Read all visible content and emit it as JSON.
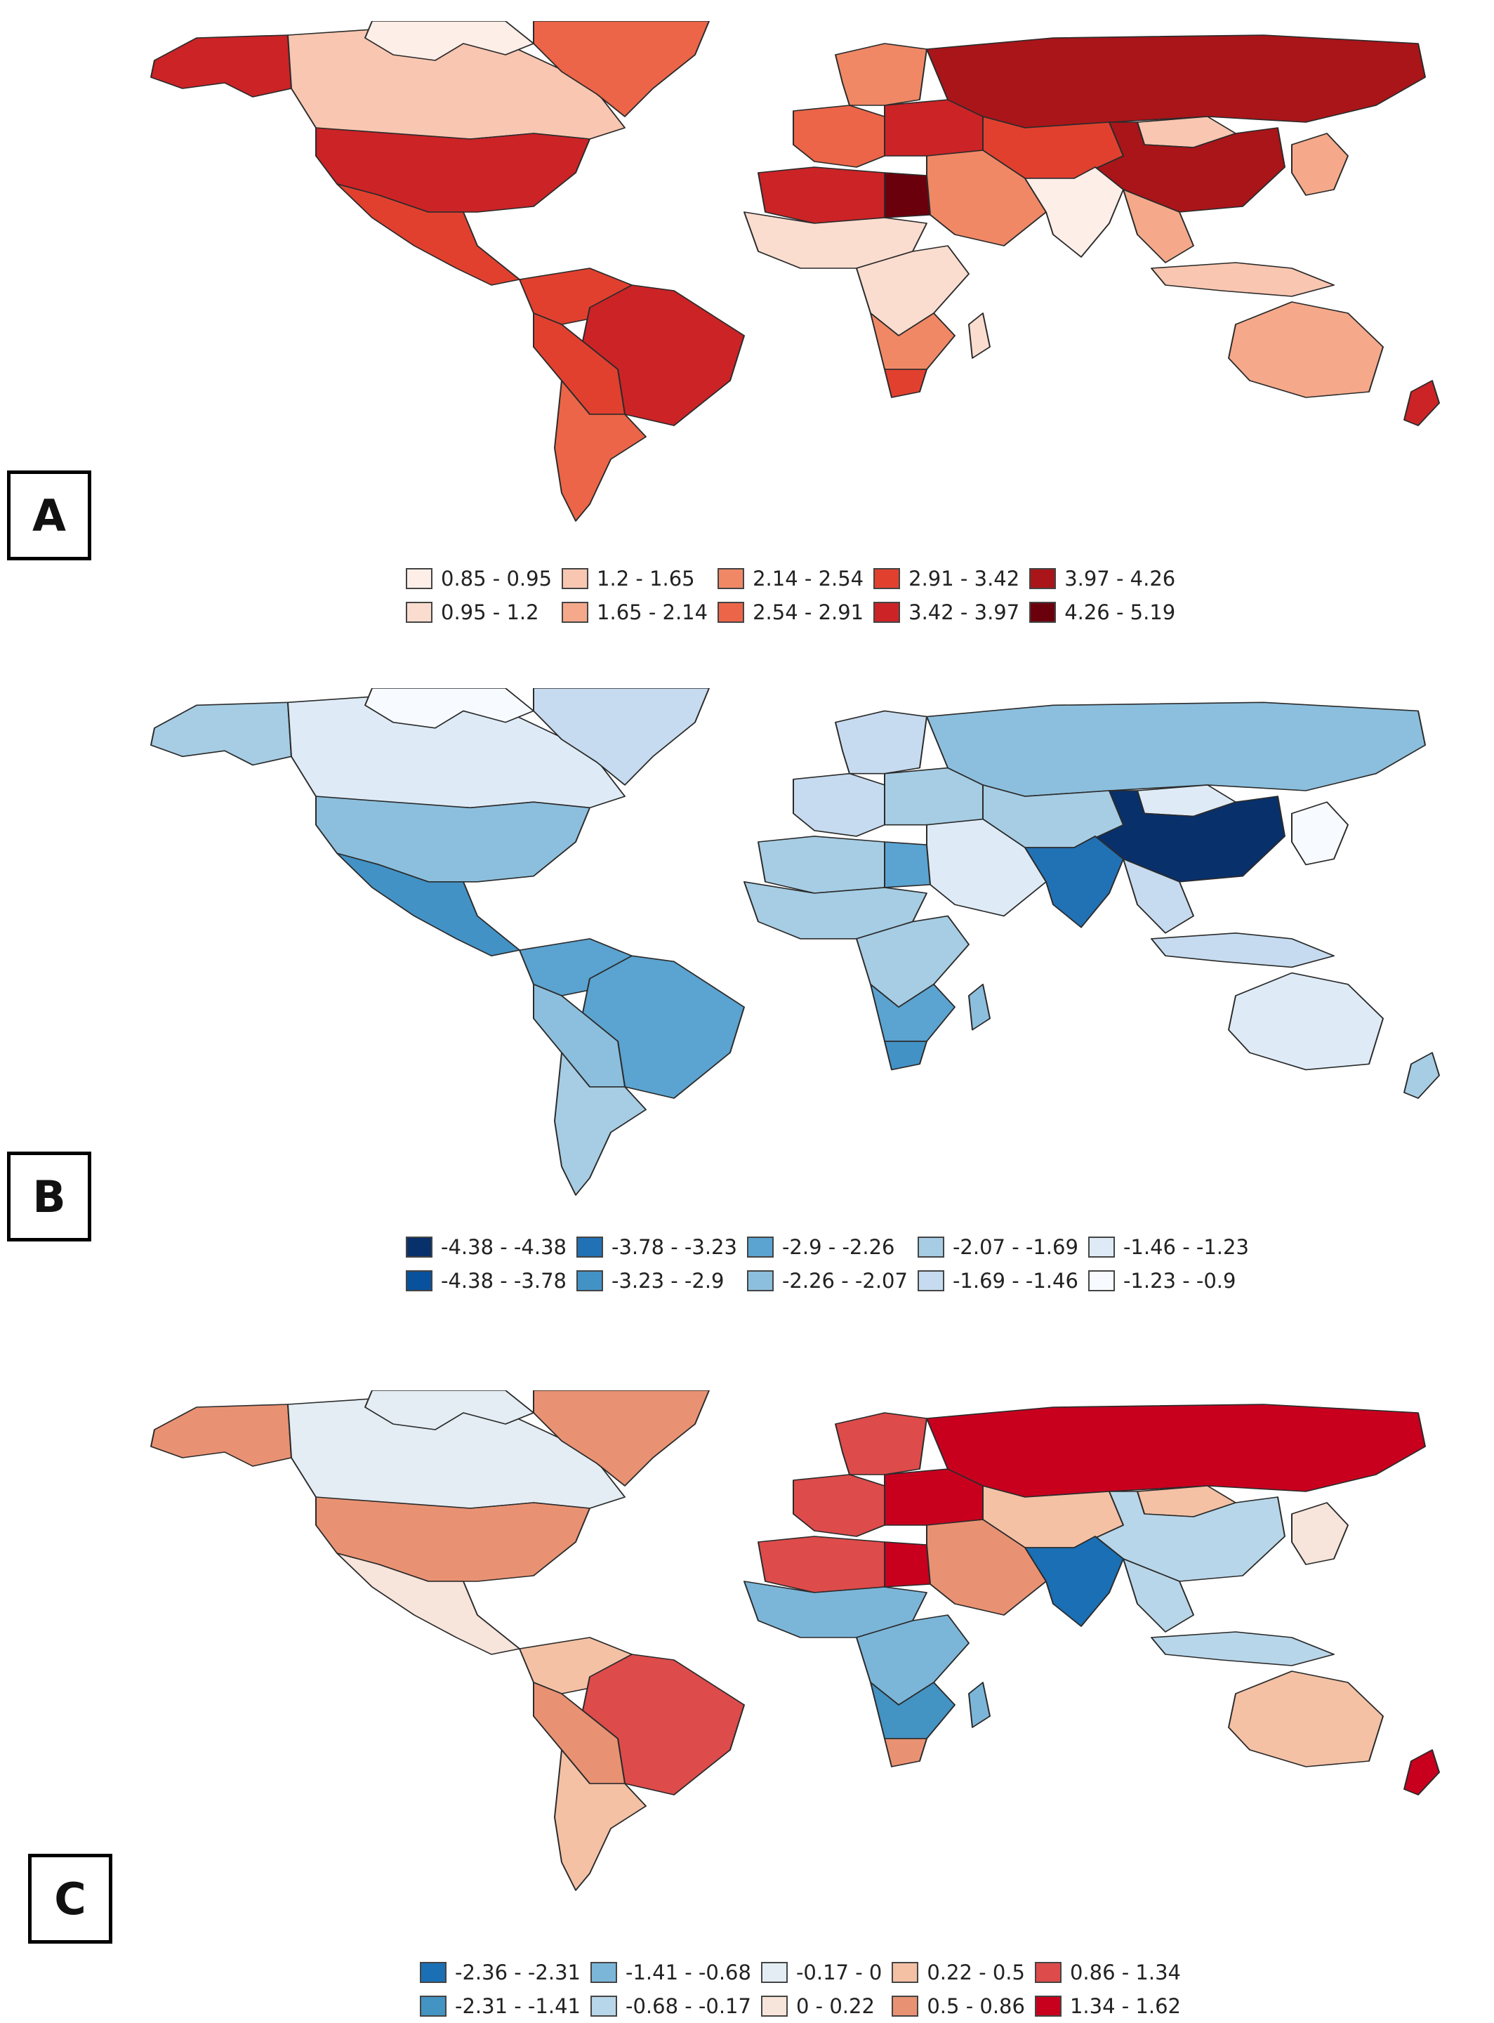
{
  "panels": [
    {
      "label": "A",
      "legend": [
        {
          "text": "0.85 - 0.95",
          "color": "#fdeee8"
        },
        {
          "text": "0.95 - 1.2",
          "color": "#fbddd0"
        },
        {
          "text": "1.2 - 1.65",
          "color": "#f9c6b1"
        },
        {
          "text": "1.65 - 2.14",
          "color": "#f5a98a"
        },
        {
          "text": "2.14 - 2.54",
          "color": "#f08866"
        },
        {
          "text": "2.54 - 2.91",
          "color": "#ec6548"
        },
        {
          "text": "2.91 - 3.42",
          "color": "#e2402f"
        },
        {
          "text": "3.42 - 3.97",
          "color": "#cc2326"
        },
        {
          "text": "3.97 - 4.26",
          "color": "#a91519"
        },
        {
          "text": "4.26 - 5.19",
          "color": "#6b000d"
        }
      ],
      "regions": [
        {
          "name": "alaska",
          "color": "#cc2326"
        },
        {
          "name": "canada",
          "color": "#f9c6b1"
        },
        {
          "name": "arctic-islands",
          "color": "#fdeee8"
        },
        {
          "name": "greenland",
          "color": "#ec6548"
        },
        {
          "name": "usa",
          "color": "#cc2326"
        },
        {
          "name": "mexico-central-america",
          "color": "#e2402f"
        },
        {
          "name": "colombia-venezuela",
          "color": "#e2402f"
        },
        {
          "name": "brazil",
          "color": "#cc2326"
        },
        {
          "name": "peru-bolivia",
          "color": "#e2402f"
        },
        {
          "name": "argentina-chile",
          "color": "#ec6548"
        },
        {
          "name": "western-europe",
          "color": "#ec6548"
        },
        {
          "name": "eastern-europe",
          "color": "#cc2326"
        },
        {
          "name": "scandinavia",
          "color": "#f08866"
        },
        {
          "name": "russia",
          "color": "#a91519"
        },
        {
          "name": "kazakhstan-central-asia",
          "color": "#e2402f"
        },
        {
          "name": "mongolia",
          "color": "#f9c6b1"
        },
        {
          "name": "china",
          "color": "#a91519"
        },
        {
          "name": "japan-korea",
          "color": "#f5a98a"
        },
        {
          "name": "north-africa",
          "color": "#cc2326"
        },
        {
          "name": "egypt",
          "color": "#6b000d"
        },
        {
          "name": "middle-east",
          "color": "#f08866"
        },
        {
          "name": "south-asia",
          "color": "#fdeee8"
        },
        {
          "name": "southeast-asia",
          "color": "#f5a98a"
        },
        {
          "name": "indonesia-pacific",
          "color": "#f9c6b1"
        },
        {
          "name": "sahel-west-africa",
          "color": "#fbddd0"
        },
        {
          "name": "central-east-africa",
          "color": "#fbddd0"
        },
        {
          "name": "southern-africa",
          "color": "#f08866"
        },
        {
          "name": "south-africa",
          "color": "#e2402f"
        },
        {
          "name": "madagascar",
          "color": "#fbddd0"
        },
        {
          "name": "australia",
          "color": "#f5a98a"
        },
        {
          "name": "new-zealand",
          "color": "#cc2326"
        }
      ]
    },
    {
      "label": "B",
      "legend": [
        {
          "text": "-4.38 - -4.38",
          "color": "#08306b"
        },
        {
          "text": "-4.38 - -3.78",
          "color": "#08519c"
        },
        {
          "text": "-3.78 - -3.23",
          "color": "#2171b5"
        },
        {
          "text": "-3.23 - -2.9",
          "color": "#4292c6"
        },
        {
          "text": "-2.9 - -2.26",
          "color": "#5ba3d0"
        },
        {
          "text": "-2.26 - -2.07",
          "color": "#8cbfdd"
        },
        {
          "text": "-2.07 - -1.69",
          "color": "#a6cde4"
        },
        {
          "text": "-1.69 - -1.46",
          "color": "#c6dbef"
        },
        {
          "text": "-1.46 - -1.23",
          "color": "#deebf7"
        },
        {
          "text": "-1.23 - -0.9",
          "color": "#f7fbff"
        }
      ],
      "regions": [
        {
          "name": "alaska",
          "color": "#a6cde4"
        },
        {
          "name": "canada",
          "color": "#deebf7"
        },
        {
          "name": "arctic-islands",
          "color": "#f7fbff"
        },
        {
          "name": "greenland",
          "color": "#c6dbef"
        },
        {
          "name": "usa",
          "color": "#8cbfdd"
        },
        {
          "name": "mexico-central-america",
          "color": "#4292c6"
        },
        {
          "name": "colombia-venezuela",
          "color": "#5ba3d0"
        },
        {
          "name": "brazil",
          "color": "#5ba3d0"
        },
        {
          "name": "peru-bolivia",
          "color": "#8cbfdd"
        },
        {
          "name": "argentina-chile",
          "color": "#a6cde4"
        },
        {
          "name": "western-europe",
          "color": "#c6dbef"
        },
        {
          "name": "eastern-europe",
          "color": "#a6cde4"
        },
        {
          "name": "scandinavia",
          "color": "#c6dbef"
        },
        {
          "name": "russia",
          "color": "#8cbfdd"
        },
        {
          "name": "kazakhstan-central-asia",
          "color": "#a6cde4"
        },
        {
          "name": "mongolia",
          "color": "#deebf7"
        },
        {
          "name": "china",
          "color": "#08306b"
        },
        {
          "name": "japan-korea",
          "color": "#f7fbff"
        },
        {
          "name": "north-africa",
          "color": "#a6cde4"
        },
        {
          "name": "egypt",
          "color": "#5ba3d0"
        },
        {
          "name": "middle-east",
          "color": "#deebf7"
        },
        {
          "name": "south-asia",
          "color": "#2171b5"
        },
        {
          "name": "southeast-asia",
          "color": "#c6dbef"
        },
        {
          "name": "indonesia-pacific",
          "color": "#c6dbef"
        },
        {
          "name": "sahel-west-africa",
          "color": "#a6cde4"
        },
        {
          "name": "central-east-africa",
          "color": "#a6cde4"
        },
        {
          "name": "southern-africa",
          "color": "#5ba3d0"
        },
        {
          "name": "south-africa",
          "color": "#4292c6"
        },
        {
          "name": "madagascar",
          "color": "#8cbfdd"
        },
        {
          "name": "australia",
          "color": "#deebf7"
        },
        {
          "name": "new-zealand",
          "color": "#a6cde4"
        }
      ]
    },
    {
      "label": "C",
      "legend": [
        {
          "text": "-2.36 - -2.31",
          "color": "#1a6fb5"
        },
        {
          "text": "-2.31 - -1.41",
          "color": "#4393c3"
        },
        {
          "text": "-1.41 - -0.68",
          "color": "#7bb6d9"
        },
        {
          "text": "-0.68 - -0.17",
          "color": "#b8d6e9"
        },
        {
          "text": "-0.17 - 0",
          "color": "#e3edf3"
        },
        {
          "text": "0 - 0.22",
          "color": "#f7e4da"
        },
        {
          "text": "0.22 - 0.5",
          "color": "#f4c1a5"
        },
        {
          "text": "0.5 - 0.86",
          "color": "#e99273"
        },
        {
          "text": "0.86 - 1.34",
          "color": "#de4b4b"
        },
        {
          "text": "1.34 - 1.62",
          "color": "#c8001e"
        }
      ],
      "regions": [
        {
          "name": "alaska",
          "color": "#e99273"
        },
        {
          "name": "canada",
          "color": "#e3edf3"
        },
        {
          "name": "arctic-islands",
          "color": "#e3edf3"
        },
        {
          "name": "greenland",
          "color": "#e99273"
        },
        {
          "name": "usa",
          "color": "#e99273"
        },
        {
          "name": "mexico-central-america",
          "color": "#f7e4da"
        },
        {
          "name": "colombia-venezuela",
          "color": "#f4c1a5"
        },
        {
          "name": "brazil",
          "color": "#de4b4b"
        },
        {
          "name": "peru-bolivia",
          "color": "#e99273"
        },
        {
          "name": "argentina-chile",
          "color": "#f4c1a5"
        },
        {
          "name": "western-europe",
          "color": "#de4b4b"
        },
        {
          "name": "eastern-europe",
          "color": "#c8001e"
        },
        {
          "name": "scandinavia",
          "color": "#de4b4b"
        },
        {
          "name": "russia",
          "color": "#c8001e"
        },
        {
          "name": "kazakhstan-central-asia",
          "color": "#f4c1a5"
        },
        {
          "name": "mongolia",
          "color": "#f4c1a5"
        },
        {
          "name": "china",
          "color": "#b8d6e9"
        },
        {
          "name": "japan-korea",
          "color": "#f7e4da"
        },
        {
          "name": "north-africa",
          "color": "#de4b4b"
        },
        {
          "name": "egypt",
          "color": "#c8001e"
        },
        {
          "name": "middle-east",
          "color": "#e99273"
        },
        {
          "name": "south-asia",
          "color": "#1a6fb5"
        },
        {
          "name": "southeast-asia",
          "color": "#b8d6e9"
        },
        {
          "name": "indonesia-pacific",
          "color": "#b8d6e9"
        },
        {
          "name": "sahel-west-africa",
          "color": "#7bb6d9"
        },
        {
          "name": "central-east-africa",
          "color": "#7bb6d9"
        },
        {
          "name": "southern-africa",
          "color": "#4393c3"
        },
        {
          "name": "south-africa",
          "color": "#e99273"
        },
        {
          "name": "madagascar",
          "color": "#7bb6d9"
        },
        {
          "name": "australia",
          "color": "#f4c1a5"
        },
        {
          "name": "new-zealand",
          "color": "#c8001e"
        }
      ]
    }
  ]
}
